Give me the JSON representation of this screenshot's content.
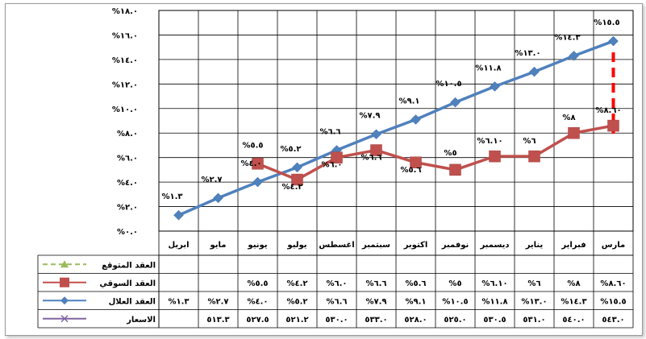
{
  "chart_data": {
    "type": "line",
    "y_ticks": [
      "%٠.٠",
      "%٢.٠",
      "%٤.٠",
      "%٦.٠",
      "%٨.٠",
      "%١٠.٠",
      "%١٢.٠",
      "%١٤.٠",
      "%١٦.٠",
      "%١٨.٠"
    ],
    "ylim": [
      0,
      18
    ],
    "grid": true,
    "legend": "table-left",
    "categories": [
      "مارس",
      "فبراير",
      "يناير",
      "ديسمبر",
      "نوفمبر",
      "اكتوبر",
      "سبتمبر",
      "اغسطس",
      "يوليو",
      "يونيو",
      "مايو",
      "ابريل"
    ],
    "series": [
      {
        "name": "العقد المتوقع",
        "color": "#9bbb59",
        "values": [
          null,
          null,
          null,
          null,
          null,
          null,
          null,
          null,
          null,
          null,
          null,
          null
        ],
        "labels": [
          "",
          "",
          "",
          "",
          "",
          "",
          "",
          "",
          "",
          "",
          "",
          ""
        ]
      },
      {
        "name": "العقد السوقي",
        "color": "#c0504d",
        "values": [
          8.6,
          8.0,
          6.1,
          6.1,
          5.0,
          5.6,
          6.6,
          6.0,
          4.2,
          5.5,
          null,
          null
        ],
        "labels": [
          "%٨.٦٠",
          "%٨",
          "%٦",
          "%٦.١٠",
          "%٥",
          "%٥.٦",
          "%٦.٦",
          "%٦.٠",
          "%٤.٢",
          "%٥.٥",
          "",
          ""
        ]
      },
      {
        "name": "العقد العلال",
        "color": "#4f81bd",
        "values": [
          15.5,
          14.3,
          13.0,
          11.8,
          10.5,
          9.1,
          7.9,
          6.6,
          5.2,
          4.0,
          2.7,
          1.3
        ],
        "labels": [
          "%١٥.٥",
          "%١٤.٣",
          "%١٣.٠",
          "%١١.٨",
          "%١٠.٥",
          "%٩.١",
          "%٧.٩",
          "%٦.٦",
          "%٥.٢",
          "%٤.٠",
          "%٢.٧",
          "%١.٣"
        ]
      },
      {
        "name": "الاسعار",
        "color": "#8064a2",
        "values": [
          543.0,
          540.0,
          531.0,
          530.5,
          525.0,
          528.0,
          533.0,
          530.0,
          521.2,
          527.5,
          513.3,
          null
        ],
        "labels": [
          "٥٤٣.٠",
          "٥٤٠.٠",
          "٥٣١.٠",
          "٥٣٠.٥",
          "٥٢٥.٠",
          "٥٢٨.٠",
          "٥٣٣.٠",
          "٥٣٠.٠",
          "٥٢١.٢",
          "٥٢٧.٥",
          "٥١٣.٣",
          ""
        ]
      }
    ],
    "table_rows": {
      "expected": [
        "",
        "",
        "",
        "",
        "",
        "",
        "",
        "",
        "",
        "",
        "",
        ""
      ],
      "market": [
        "%٨.٦٠",
        "%٨",
        "%٦",
        "%٦.١٠",
        "%٥",
        "%٥.٦",
        "%٦.٦",
        "%٦.٠",
        "%٤.٢",
        "%٥.٥",
        "",
        ""
      ],
      "fair": [
        "%١٥.٥",
        "%١٤.٣",
        "%١٣.٠",
        "%١١.٨",
        "%١٠.٥",
        "%٩.١",
        "%٧.٩",
        "%٦.٦",
        "%٥.٢",
        "%٤.٠",
        "%٢.٧",
        "%١.٣"
      ],
      "prices": [
        "٥٤٣.٠",
        "٥٤٠.٠",
        "٥٣١.٠",
        "٥٣٠.٥",
        "٥٢٥.٠",
        "٥٢٨.٠",
        "٥٣٣.٠",
        "٥٣٠.٠",
        "٥٢١.٢",
        "٥٢٧.٥",
        "٥١٣.٣",
        ""
      ]
    },
    "annotation": {
      "type": "dashed-connector",
      "color": "#ff0000",
      "from_series": "العقد العلال",
      "to_series": "العقد السوقي",
      "category": "مارس"
    }
  }
}
